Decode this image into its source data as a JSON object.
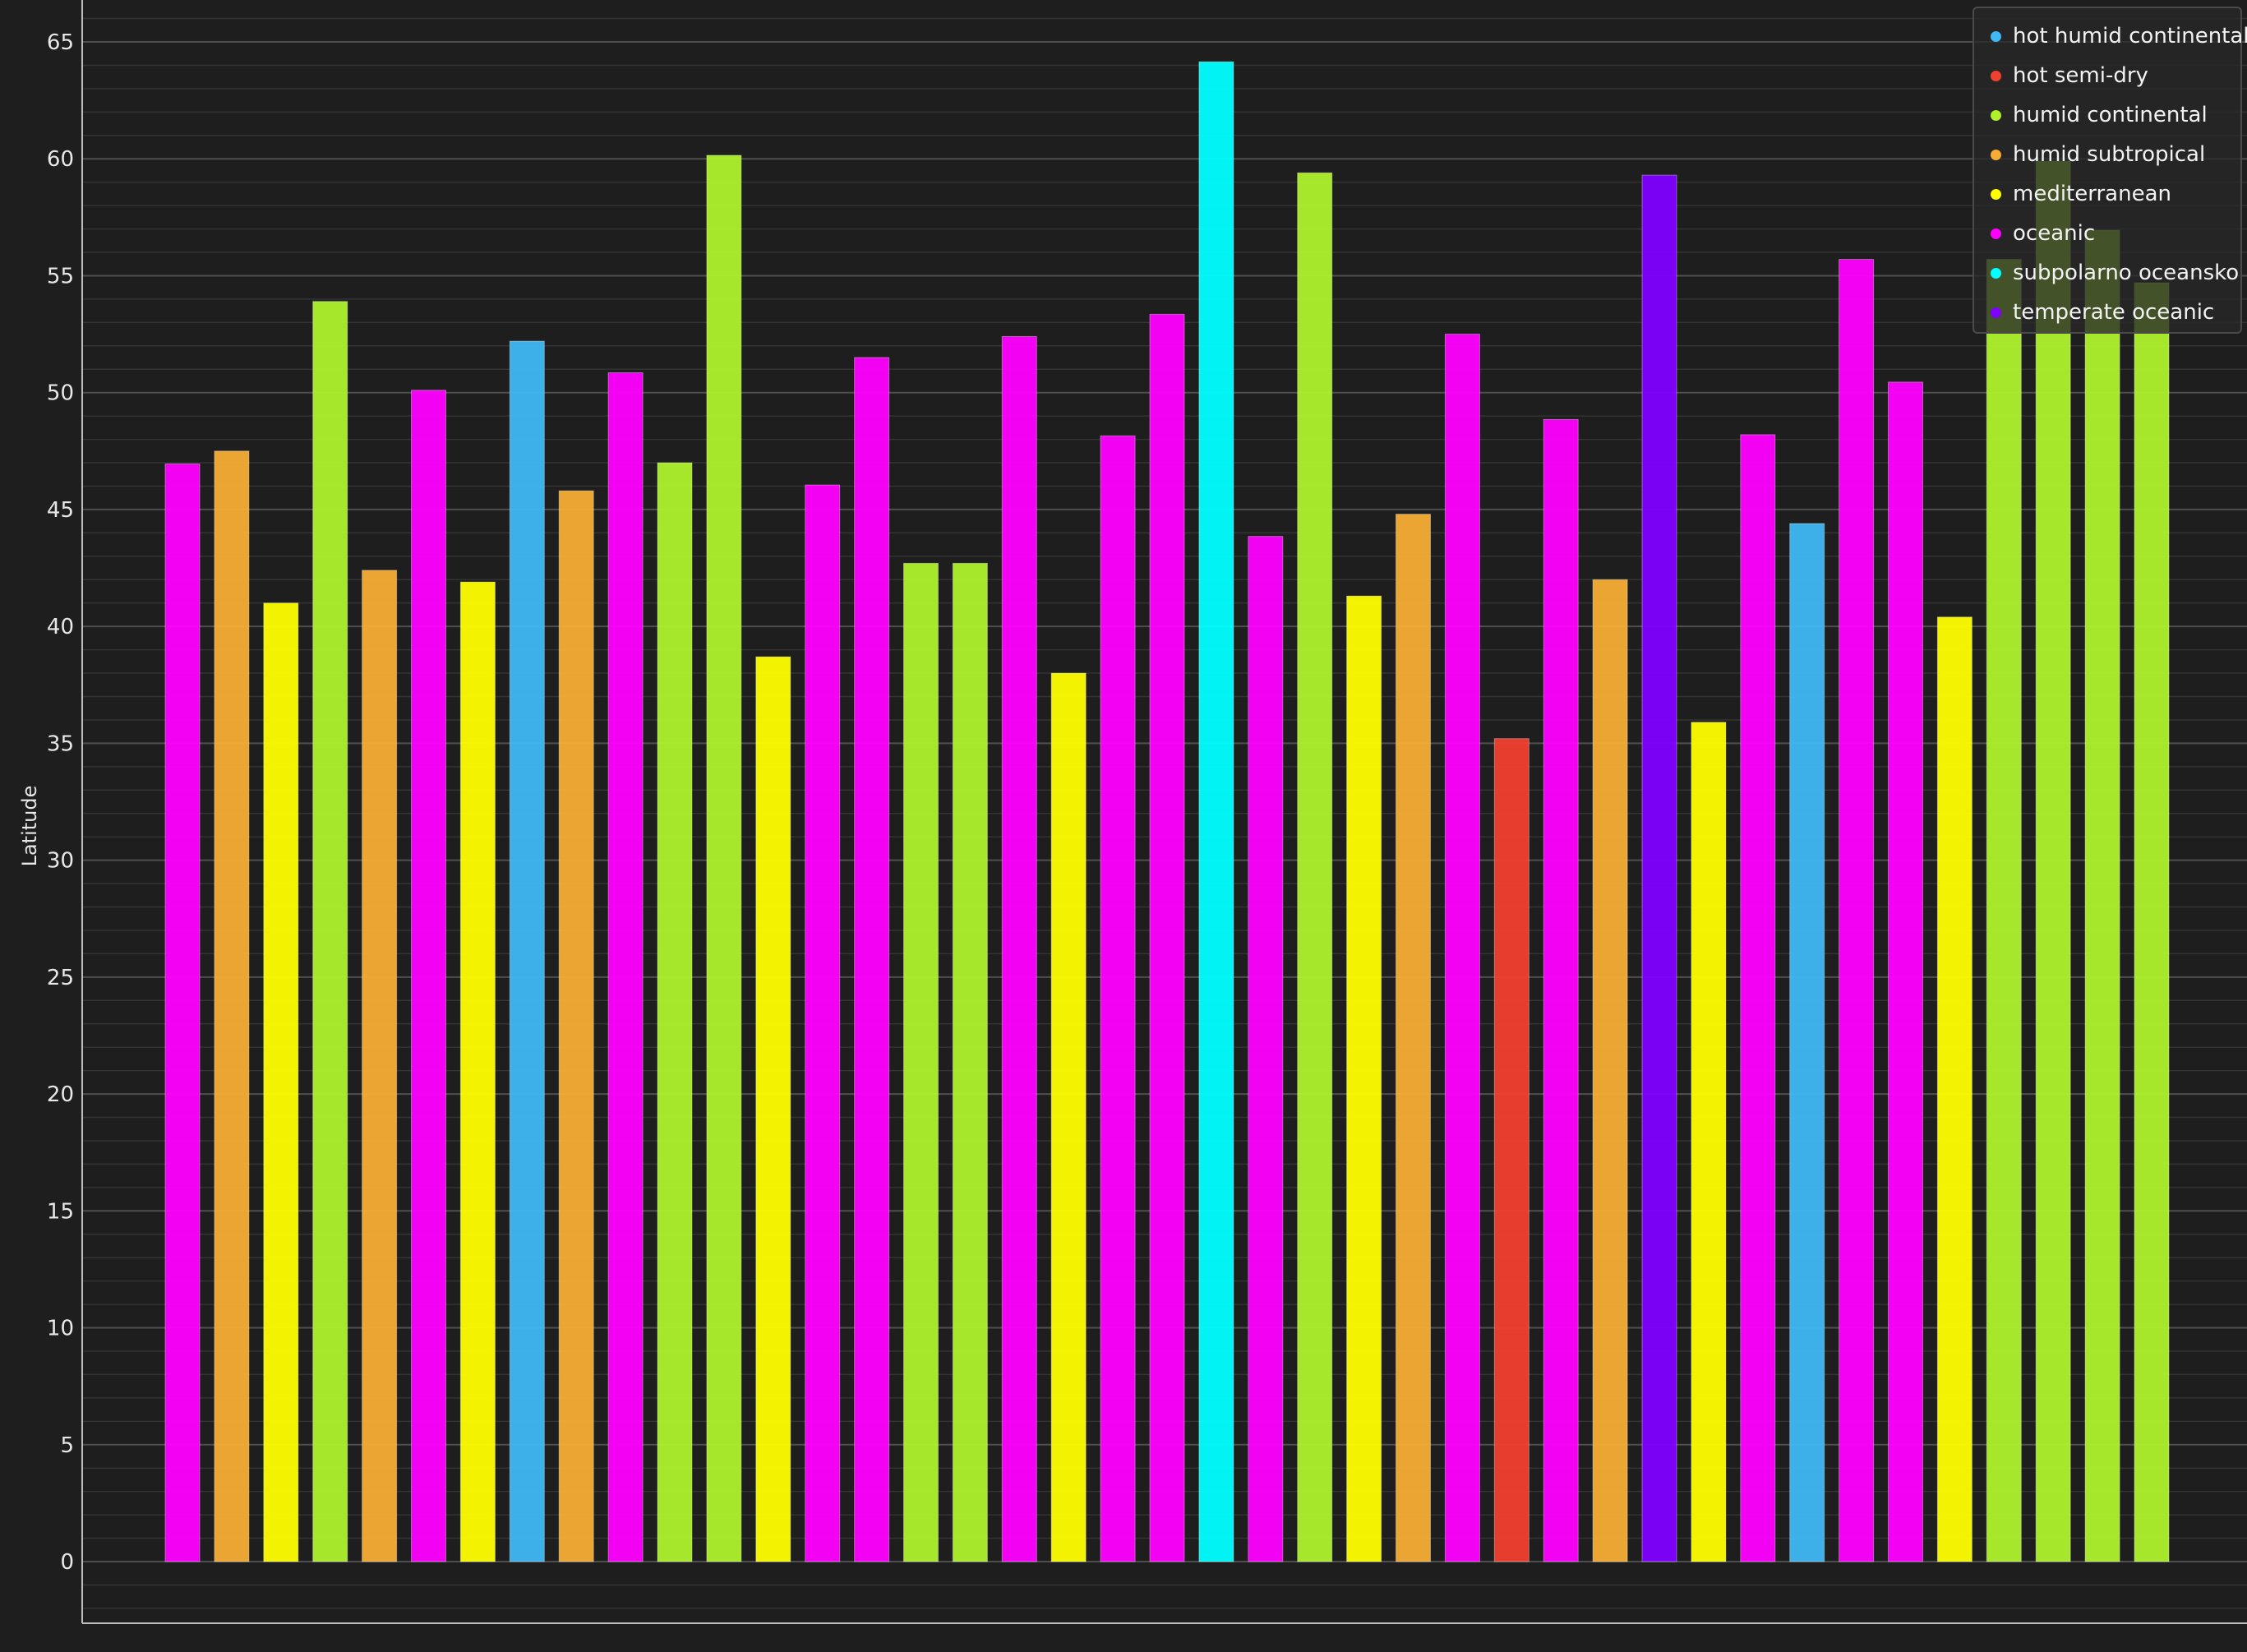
{
  "chart_data": {
    "type": "bar",
    "ylabel": "Latitude",
    "xlabel": "",
    "ylim": [
      -2.6,
      66.8
    ],
    "yticks": [
      0,
      5,
      10,
      15,
      20,
      25,
      30,
      35,
      40,
      45,
      50,
      55,
      60,
      65
    ],
    "grid": true,
    "legend_position": "top-right",
    "legend": [
      {
        "name": "hot humid continental",
        "color": "#3fb8f5"
      },
      {
        "name": "hot semi-dry",
        "color": "#f04030"
      },
      {
        "name": "humid continental",
        "color": "#aef22c"
      },
      {
        "name": "humid subtropical",
        "color": "#f7ad35"
      },
      {
        "name": "mediterranean",
        "color": "#ffff00"
      },
      {
        "name": "oceanic",
        "color": "#ff00ff"
      },
      {
        "name": "subpolarno oceansko",
        "color": "#00ffff"
      },
      {
        "name": "temperate oceanic",
        "color": "#8000ff"
      }
    ],
    "bars": [
      {
        "value": 46.95,
        "group": "oceanic"
      },
      {
        "value": 47.5,
        "group": "humid subtropical"
      },
      {
        "value": 41.0,
        "group": "mediterranean"
      },
      {
        "value": 53.9,
        "group": "humid continental"
      },
      {
        "value": 42.4,
        "group": "humid subtropical"
      },
      {
        "value": 50.1,
        "group": "oceanic"
      },
      {
        "value": 41.9,
        "group": "mediterranean"
      },
      {
        "value": 52.2,
        "group": "hot humid continental"
      },
      {
        "value": 45.8,
        "group": "humid subtropical"
      },
      {
        "value": 50.85,
        "group": "oceanic"
      },
      {
        "value": 47.0,
        "group": "humid continental"
      },
      {
        "value": 60.15,
        "group": "humid continental"
      },
      {
        "value": 38.7,
        "group": "mediterranean"
      },
      {
        "value": 46.05,
        "group": "oceanic"
      },
      {
        "value": 51.5,
        "group": "oceanic"
      },
      {
        "value": 42.7,
        "group": "humid continental"
      },
      {
        "value": 42.7,
        "group": "humid continental"
      },
      {
        "value": 52.4,
        "group": "oceanic"
      },
      {
        "value": 38.0,
        "group": "mediterranean"
      },
      {
        "value": 48.15,
        "group": "oceanic"
      },
      {
        "value": 53.35,
        "group": "oceanic"
      },
      {
        "value": 64.15,
        "group": "subpolarno oceansko"
      },
      {
        "value": 43.85,
        "group": "oceanic"
      },
      {
        "value": 59.4,
        "group": "humid continental"
      },
      {
        "value": 41.3,
        "group": "mediterranean"
      },
      {
        "value": 44.8,
        "group": "humid subtropical"
      },
      {
        "value": 52.5,
        "group": "oceanic"
      },
      {
        "value": 35.2,
        "group": "hot semi-dry"
      },
      {
        "value": 48.85,
        "group": "oceanic"
      },
      {
        "value": 42.0,
        "group": "humid subtropical"
      },
      {
        "value": 59.3,
        "group": "temperate oceanic"
      },
      {
        "value": 35.9,
        "group": "mediterranean"
      },
      {
        "value": 48.2,
        "group": "oceanic"
      },
      {
        "value": 44.4,
        "group": "hot humid continental"
      },
      {
        "value": 55.7,
        "group": "oceanic"
      },
      {
        "value": 50.45,
        "group": "oceanic"
      },
      {
        "value": 40.4,
        "group": "mediterranean"
      },
      {
        "value": 55.7,
        "group": "humid continental"
      },
      {
        "value": 59.9,
        "group": "humid continental"
      },
      {
        "value": 56.95,
        "group": "humid continental"
      },
      {
        "value": 54.7,
        "group": "humid continental"
      }
    ]
  }
}
